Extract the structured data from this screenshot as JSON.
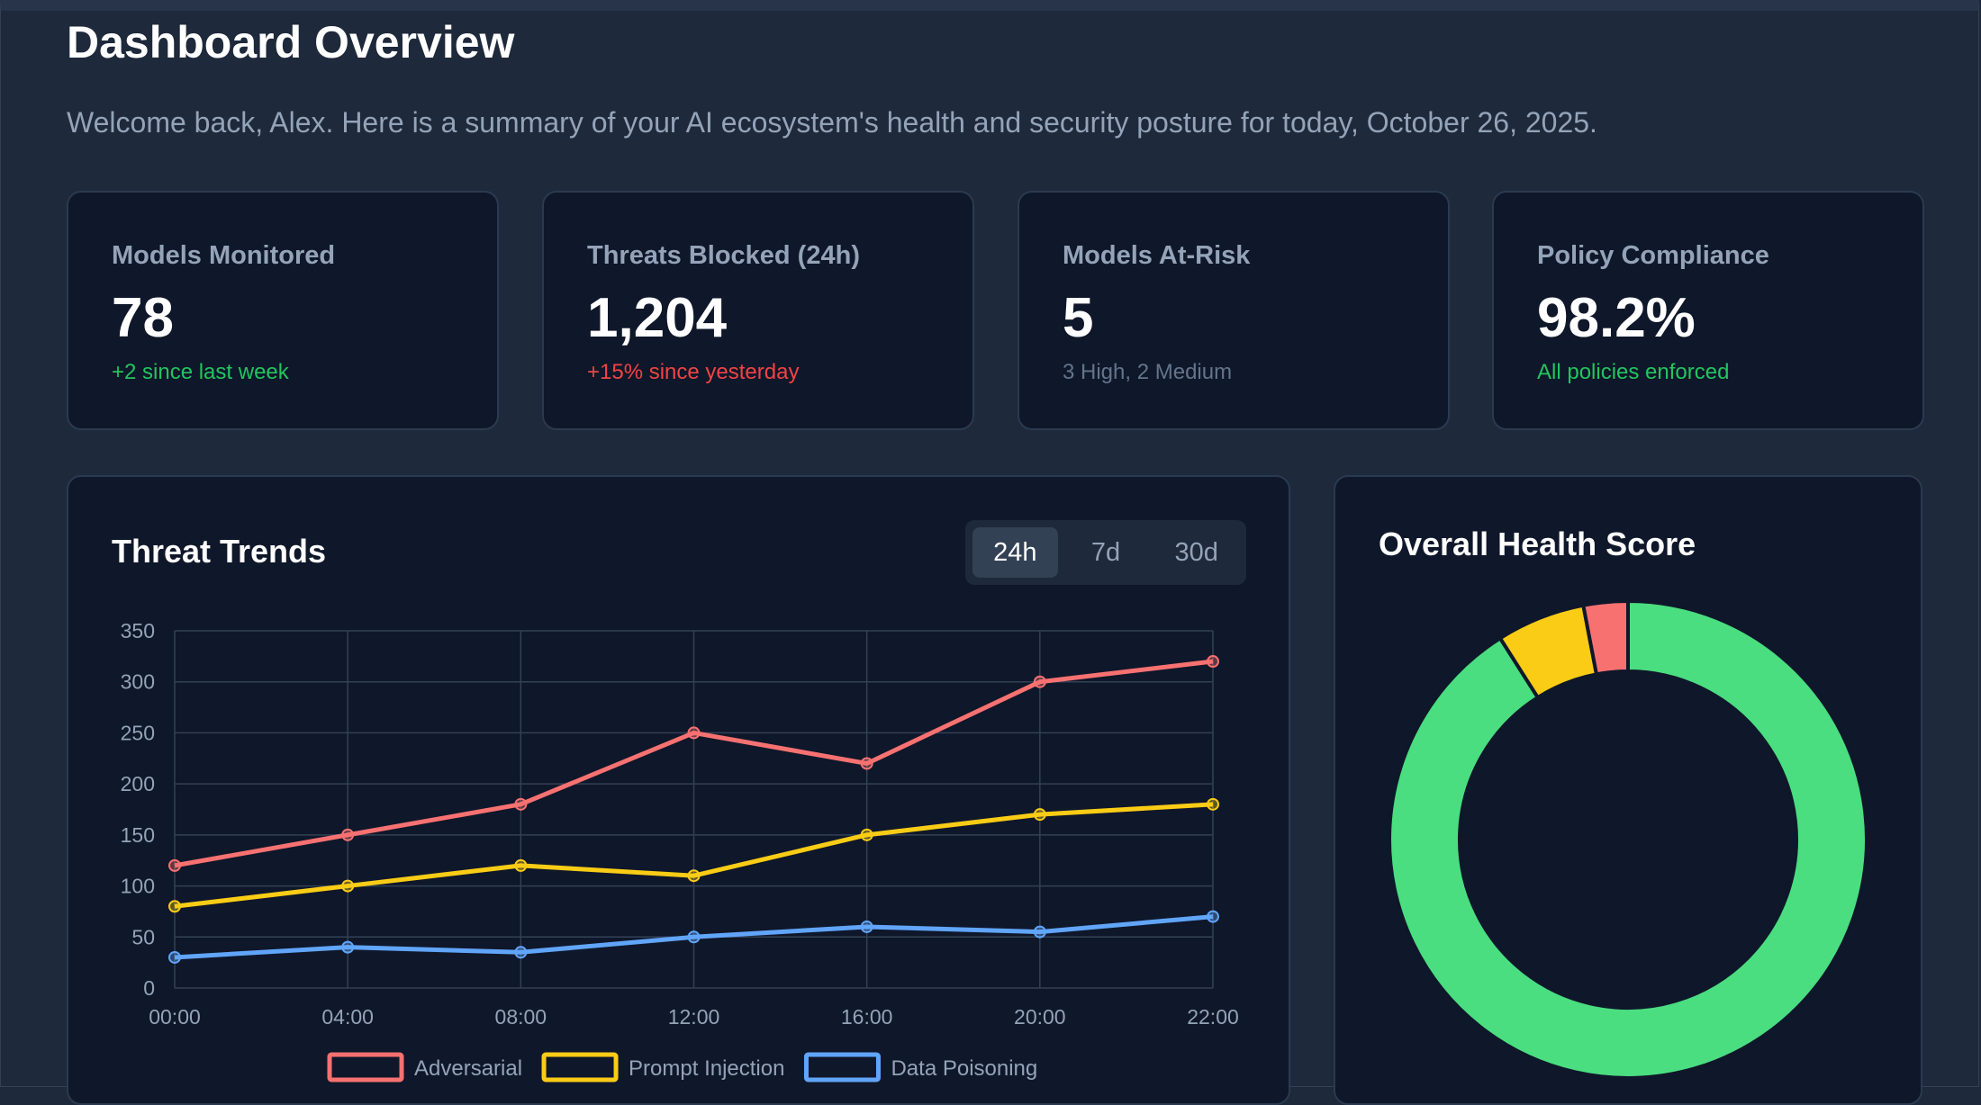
{
  "header": {
    "title": "Dashboard Overview",
    "subtitle": "Welcome back, Alex. Here is a summary of your AI ecosystem's health and security posture for today, October 26, 2025."
  },
  "stats": [
    {
      "label": "Models Monitored",
      "value": "78",
      "note": "+2 since last week",
      "note_color": "#22c55e"
    },
    {
      "label": "Threats Blocked (24h)",
      "value": "1,204",
      "note": "+15% since yesterday",
      "note_color": "#ef4444"
    },
    {
      "label": "Models At-Risk",
      "value": "5",
      "note": "3 High, 2 Medium",
      "note_color": "#64748b"
    },
    {
      "label": "Policy Compliance",
      "value": "98.2%",
      "note": "All policies enforced",
      "note_color": "#22c55e"
    }
  ],
  "threat_trends": {
    "title": "Threat Trends",
    "ranges": [
      "24h",
      "7d",
      "30d"
    ],
    "active_range": "24h"
  },
  "health": {
    "title": "Overall Health Score"
  },
  "chart_data": [
    {
      "type": "line",
      "title": "Threat Trends",
      "x": [
        "00:00",
        "04:00",
        "08:00",
        "12:00",
        "16:00",
        "20:00",
        "22:00"
      ],
      "ylim": [
        0,
        350
      ],
      "yticks": [
        0,
        50,
        100,
        150,
        200,
        250,
        300,
        350
      ],
      "grid": true,
      "legend": "bottom",
      "series": [
        {
          "name": "Adversarial",
          "color": "#f87171",
          "values": [
            120,
            150,
            180,
            250,
            220,
            300,
            320
          ]
        },
        {
          "name": "Prompt Injection",
          "color": "#facc15",
          "values": [
            80,
            100,
            120,
            110,
            150,
            170,
            180
          ]
        },
        {
          "name": "Data Poisoning",
          "color": "#60a5fa",
          "values": [
            30,
            40,
            35,
            50,
            60,
            55,
            70
          ]
        }
      ]
    },
    {
      "type": "pie",
      "style": "doughnut",
      "title": "Overall Health Score",
      "slices": [
        {
          "value": 91,
          "color": "#4ade80"
        },
        {
          "value": 6,
          "color": "#facc15"
        },
        {
          "value": 3,
          "color": "#f87171"
        }
      ]
    }
  ]
}
